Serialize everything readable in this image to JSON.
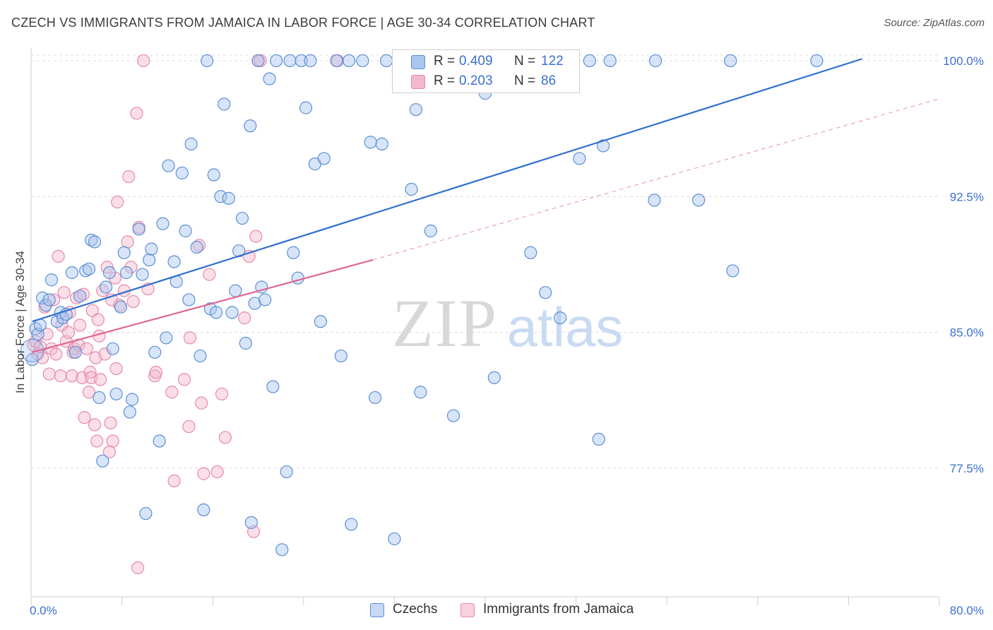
{
  "title": "CZECH VS IMMIGRANTS FROM JAMAICA IN LABOR FORCE | AGE 30-34 CORRELATION CHART",
  "source": "Source: ZipAtlas.com",
  "watermark": {
    "zip": "ZIP",
    "atlas": "atlas"
  },
  "colors": {
    "blue_fill": "#a9c6ef",
    "blue_stroke": "#5b8fd6",
    "blue_line": "#2f6fce",
    "pink_fill": "#f4b8cb",
    "pink_stroke": "#e68aa8",
    "pink_line": "#e06492",
    "tick_text": "#3b6fd0"
  },
  "legend": {
    "rows": [
      {
        "r_label": "R =",
        "r_value": "0.409",
        "n_label": "N =",
        "n_value": "122",
        "color": "#a9c6ef"
      },
      {
        "r_label": "R =",
        "r_value": "0.203",
        "n_label": "N =",
        "n_value": "86",
        "color": "#f4b8cb"
      }
    ]
  },
  "bottom_legend": [
    {
      "label": "Czechs",
      "color": "#a9c6ef"
    },
    {
      "label": "Immigrants from Jamaica",
      "color": "#f4b8cb"
    }
  ],
  "chart_data": {
    "type": "scatter",
    "title": "CZECH VS IMMIGRANTS FROM JAMAICA IN LABOR FORCE | AGE 30-34 CORRELATION CHART",
    "xlabel": "",
    "ylabel": "In Labor Force | Age 30-34",
    "xlim": [
      0,
      80
    ],
    "ylim": [
      70.4,
      100.7
    ],
    "x_tick_labels": [
      "0.0%",
      "80.0%"
    ],
    "y_ticks": [
      77.5,
      85.0,
      92.5,
      100.0
    ],
    "y_tick_labels": [
      "77.5%",
      "85.0%",
      "92.5%",
      "100.0%"
    ],
    "grid": true,
    "legend_position": "top-center",
    "series": [
      {
        "name": "Czechs",
        "r": 0.409,
        "n": 122,
        "trend": {
          "x": [
            0.1,
            73.2
          ],
          "y": [
            85.6,
            100.1
          ]
        },
        "points": [
          [
            0.1,
            83.5
          ],
          [
            0.4,
            85.2
          ],
          [
            0.6,
            84.9
          ],
          [
            0.8,
            85.4
          ],
          [
            1.0,
            86.9
          ],
          [
            1.3,
            86.5
          ],
          [
            1.6,
            86.8
          ],
          [
            1.8,
            87.9
          ],
          [
            2.3,
            85.6
          ],
          [
            2.6,
            86.1
          ],
          [
            2.8,
            85.8
          ],
          [
            3.1,
            86.0
          ],
          [
            3.6,
            88.3
          ],
          [
            3.9,
            83.9
          ],
          [
            4.3,
            87.0
          ],
          [
            4.8,
            88.4
          ],
          [
            5.1,
            88.5
          ],
          [
            5.3,
            90.1
          ],
          [
            5.6,
            90.0
          ],
          [
            6.0,
            81.4
          ],
          [
            6.3,
            77.9
          ],
          [
            6.6,
            87.5
          ],
          [
            6.9,
            88.3
          ],
          [
            7.2,
            84.1
          ],
          [
            7.5,
            81.6
          ],
          [
            7.9,
            86.4
          ],
          [
            8.2,
            89.4
          ],
          [
            8.4,
            88.3
          ],
          [
            8.7,
            80.6
          ],
          [
            8.9,
            81.3
          ],
          [
            9.5,
            90.7
          ],
          [
            9.8,
            88.2
          ],
          [
            10.1,
            75.0
          ],
          [
            10.4,
            89.0
          ],
          [
            10.6,
            89.6
          ],
          [
            10.9,
            83.9
          ],
          [
            11.3,
            79.0
          ],
          [
            11.6,
            91.0
          ],
          [
            11.9,
            84.7
          ],
          [
            12.1,
            94.2
          ],
          [
            12.6,
            88.9
          ],
          [
            12.8,
            87.8
          ],
          [
            13.3,
            93.8
          ],
          [
            13.6,
            90.6
          ],
          [
            13.9,
            86.8
          ],
          [
            14.1,
            95.4
          ],
          [
            14.6,
            89.7
          ],
          [
            14.9,
            83.7
          ],
          [
            15.2,
            75.2
          ],
          [
            15.5,
            100.0
          ],
          [
            15.8,
            86.3
          ],
          [
            16.1,
            93.7
          ],
          [
            16.3,
            86.1
          ],
          [
            16.7,
            92.5
          ],
          [
            17.0,
            97.6
          ],
          [
            17.4,
            92.4
          ],
          [
            17.7,
            86.1
          ],
          [
            18.0,
            87.3
          ],
          [
            18.3,
            89.5
          ],
          [
            18.6,
            91.3
          ],
          [
            18.9,
            84.4
          ],
          [
            19.3,
            96.4
          ],
          [
            19.4,
            74.5
          ],
          [
            19.7,
            86.6
          ],
          [
            20.0,
            100.0
          ],
          [
            20.3,
            87.5
          ],
          [
            20.6,
            86.8
          ],
          [
            21.0,
            99.0
          ],
          [
            21.3,
            82.0
          ],
          [
            21.6,
            100.0
          ],
          [
            22.1,
            73.0
          ],
          [
            22.5,
            77.3
          ],
          [
            22.8,
            100.0
          ],
          [
            23.1,
            89.4
          ],
          [
            23.5,
            88.0
          ],
          [
            23.8,
            100.0
          ],
          [
            24.2,
            97.4
          ],
          [
            24.6,
            100.0
          ],
          [
            25.0,
            94.3
          ],
          [
            25.5,
            85.6
          ],
          [
            25.8,
            94.6
          ],
          [
            26.9,
            100.0
          ],
          [
            27.3,
            83.7
          ],
          [
            28.0,
            100.0
          ],
          [
            28.2,
            74.4
          ],
          [
            29.2,
            100.0
          ],
          [
            29.9,
            95.5
          ],
          [
            30.3,
            81.4
          ],
          [
            30.9,
            95.4
          ],
          [
            31.3,
            100.0
          ],
          [
            32.0,
            73.6
          ],
          [
            33.0,
            100.0
          ],
          [
            33.5,
            92.9
          ],
          [
            33.9,
            97.3
          ],
          [
            34.3,
            81.7
          ],
          [
            35.2,
            90.6
          ],
          [
            36.1,
            100.0
          ],
          [
            37.2,
            80.4
          ],
          [
            38.4,
            100.0
          ],
          [
            39.6,
            100.0
          ],
          [
            40.0,
            98.2
          ],
          [
            40.8,
            82.5
          ],
          [
            41.9,
            100.0
          ],
          [
            44.0,
            89.4
          ],
          [
            45.3,
            87.2
          ],
          [
            46.6,
            85.8
          ],
          [
            46.9,
            100.0
          ],
          [
            48.3,
            94.6
          ],
          [
            49.2,
            100.0
          ],
          [
            50.0,
            79.1
          ],
          [
            50.4,
            95.3
          ],
          [
            51.0,
            100.0
          ],
          [
            54.9,
            92.3
          ],
          [
            55.0,
            100.0
          ],
          [
            58.8,
            92.3
          ],
          [
            61.6,
            100.0
          ],
          [
            61.8,
            88.4
          ],
          [
            69.2,
            100.0
          ]
        ]
      },
      {
        "name": "Immigrants from Jamaica",
        "r": 0.203,
        "n": 86,
        "trend": {
          "x": [
            0.1,
            30.1
          ],
          "y": [
            83.9,
            89.0
          ]
        },
        "trend_extension": {
          "x": [
            30.1,
            80.0
          ],
          "y": [
            89.0,
            97.9
          ]
        },
        "points": [
          [
            0.2,
            84.3
          ],
          [
            0.4,
            84.5
          ],
          [
            0.6,
            83.8
          ],
          [
            0.8,
            84.2
          ],
          [
            1.0,
            83.6
          ],
          [
            1.2,
            86.4
          ],
          [
            1.4,
            84.9
          ],
          [
            1.6,
            82.7
          ],
          [
            1.8,
            84.1
          ],
          [
            2.0,
            86.8
          ],
          [
            2.2,
            83.8
          ],
          [
            2.4,
            89.2
          ],
          [
            2.6,
            82.6
          ],
          [
            2.7,
            85.4
          ],
          [
            2.9,
            87.2
          ],
          [
            3.1,
            84.5
          ],
          [
            3.3,
            85.0
          ],
          [
            3.4,
            86.1
          ],
          [
            3.6,
            82.6
          ],
          [
            3.7,
            83.9
          ],
          [
            3.8,
            84.1
          ],
          [
            4.0,
            86.9
          ],
          [
            4.2,
            84.3
          ],
          [
            4.3,
            85.4
          ],
          [
            4.5,
            82.5
          ],
          [
            4.6,
            87.1
          ],
          [
            4.7,
            80.3
          ],
          [
            4.9,
            84.1
          ],
          [
            5.1,
            81.7
          ],
          [
            5.2,
            82.8
          ],
          [
            5.3,
            82.5
          ],
          [
            5.4,
            86.2
          ],
          [
            5.6,
            79.9
          ],
          [
            5.7,
            83.6
          ],
          [
            5.8,
            79.0
          ],
          [
            5.9,
            85.7
          ],
          [
            6.0,
            84.8
          ],
          [
            6.1,
            82.4
          ],
          [
            6.3,
            87.3
          ],
          [
            6.5,
            83.8
          ],
          [
            6.7,
            88.6
          ],
          [
            6.9,
            78.4
          ],
          [
            7.0,
            80.0
          ],
          [
            7.1,
            86.8
          ],
          [
            7.2,
            79.0
          ],
          [
            7.4,
            88.0
          ],
          [
            7.5,
            83.0
          ],
          [
            7.6,
            92.2
          ],
          [
            7.8,
            86.5
          ],
          [
            8.2,
            87.3
          ],
          [
            8.5,
            90.0
          ],
          [
            8.6,
            93.6
          ],
          [
            8.8,
            88.6
          ],
          [
            9.0,
            86.7
          ],
          [
            9.3,
            97.1
          ],
          [
            9.4,
            72.0
          ],
          [
            9.5,
            90.8
          ],
          [
            9.9,
            100.0
          ],
          [
            10.3,
            87.4
          ],
          [
            10.9,
            82.6
          ],
          [
            11.0,
            82.8
          ],
          [
            12.4,
            81.7
          ],
          [
            12.6,
            76.8
          ],
          [
            13.5,
            82.4
          ],
          [
            13.9,
            79.8
          ],
          [
            14.0,
            84.7
          ],
          [
            14.8,
            89.8
          ],
          [
            15.0,
            81.1
          ],
          [
            15.2,
            77.2
          ],
          [
            15.7,
            88.2
          ],
          [
            16.4,
            77.3
          ],
          [
            16.8,
            81.6
          ],
          [
            17.1,
            79.2
          ],
          [
            18.8,
            85.8
          ],
          [
            19.2,
            89.2
          ],
          [
            19.6,
            74.0
          ],
          [
            19.8,
            90.3
          ],
          [
            20.0,
            100.0
          ],
          [
            20.2,
            100.0
          ],
          [
            27.0,
            100.0
          ]
        ]
      }
    ]
  }
}
